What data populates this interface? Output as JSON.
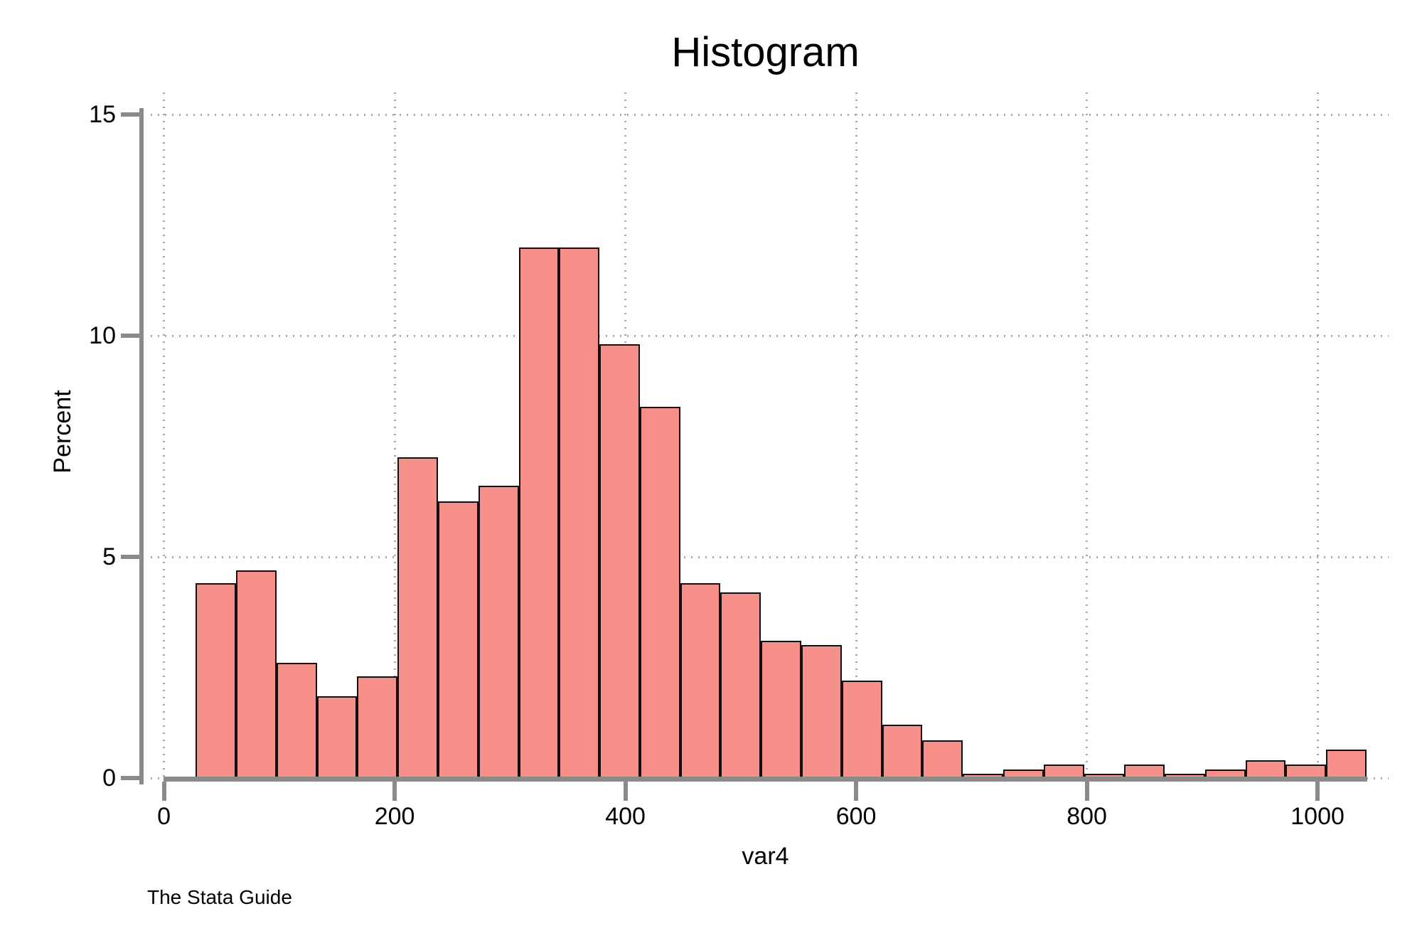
{
  "chart_data": {
    "type": "bar",
    "subtype": "histogram",
    "title": "Histogram",
    "xlabel": "var4",
    "ylabel": "Percent",
    "source_note": "The Stata Guide",
    "bin_start": 27.5,
    "bin_width": 35,
    "percents": [
      4.4,
      4.7,
      2.6,
      1.85,
      2.3,
      7.25,
      6.25,
      6.6,
      12,
      12,
      9.8,
      8.4,
      4.4,
      4.2,
      3.1,
      3.0,
      2.2,
      1.2,
      0.85,
      0.1,
      0.2,
      0.3,
      0.1,
      0.3,
      0.1,
      0.2,
      0.4,
      0.3,
      0.65
    ],
    "x_ticks": [
      0,
      200,
      400,
      600,
      800,
      1000
    ],
    "y_ticks": [
      0,
      5,
      10,
      15
    ],
    "ylim": [
      0,
      15
    ],
    "grid_style": "dotted",
    "bar_fill_color": "#F8908A",
    "bar_outline_color": "#111111",
    "axis_color": "#8a8a8a",
    "grid_color": "#a8a8a8"
  }
}
